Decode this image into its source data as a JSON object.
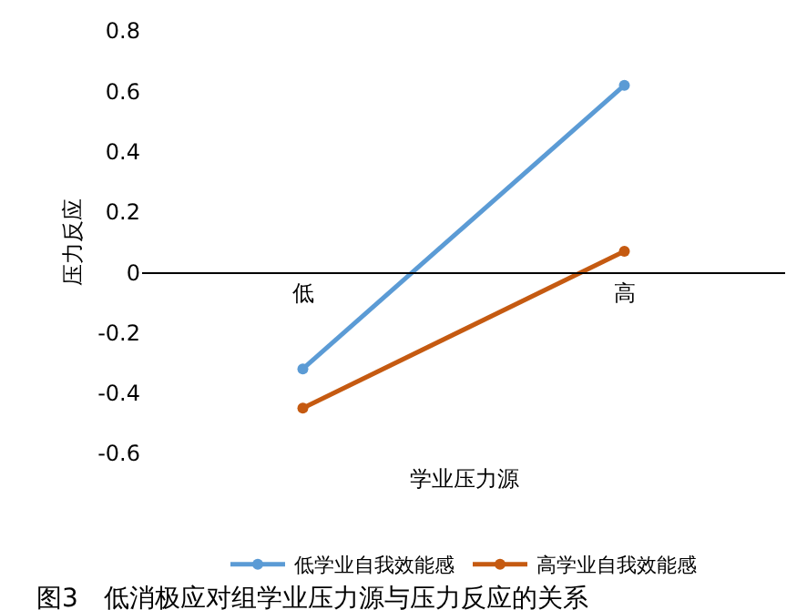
{
  "chart_data": {
    "type": "line",
    "categories": [
      "低",
      "高"
    ],
    "xlabel": "学业压力源",
    "ylabel": "压力反应",
    "series": [
      {
        "name": "低学业自我效能感",
        "color": "#5b9bd5",
        "values": [
          -0.32,
          0.62
        ]
      },
      {
        "name": "高学业自我效能感",
        "color": "#c55a11",
        "values": [
          -0.45,
          0.07
        ]
      }
    ],
    "ylim": [
      -0.6,
      0.8
    ],
    "yticks": [
      -0.6,
      -0.4,
      -0.2,
      0,
      0.2,
      0.4,
      0.6,
      0.8
    ],
    "grid": false,
    "legend": "bottom",
    "marker": "circle",
    "line_style": "solid",
    "annotations": [
      "图3　低消极应对组学业压力源与压力反应的关系"
    ]
  }
}
